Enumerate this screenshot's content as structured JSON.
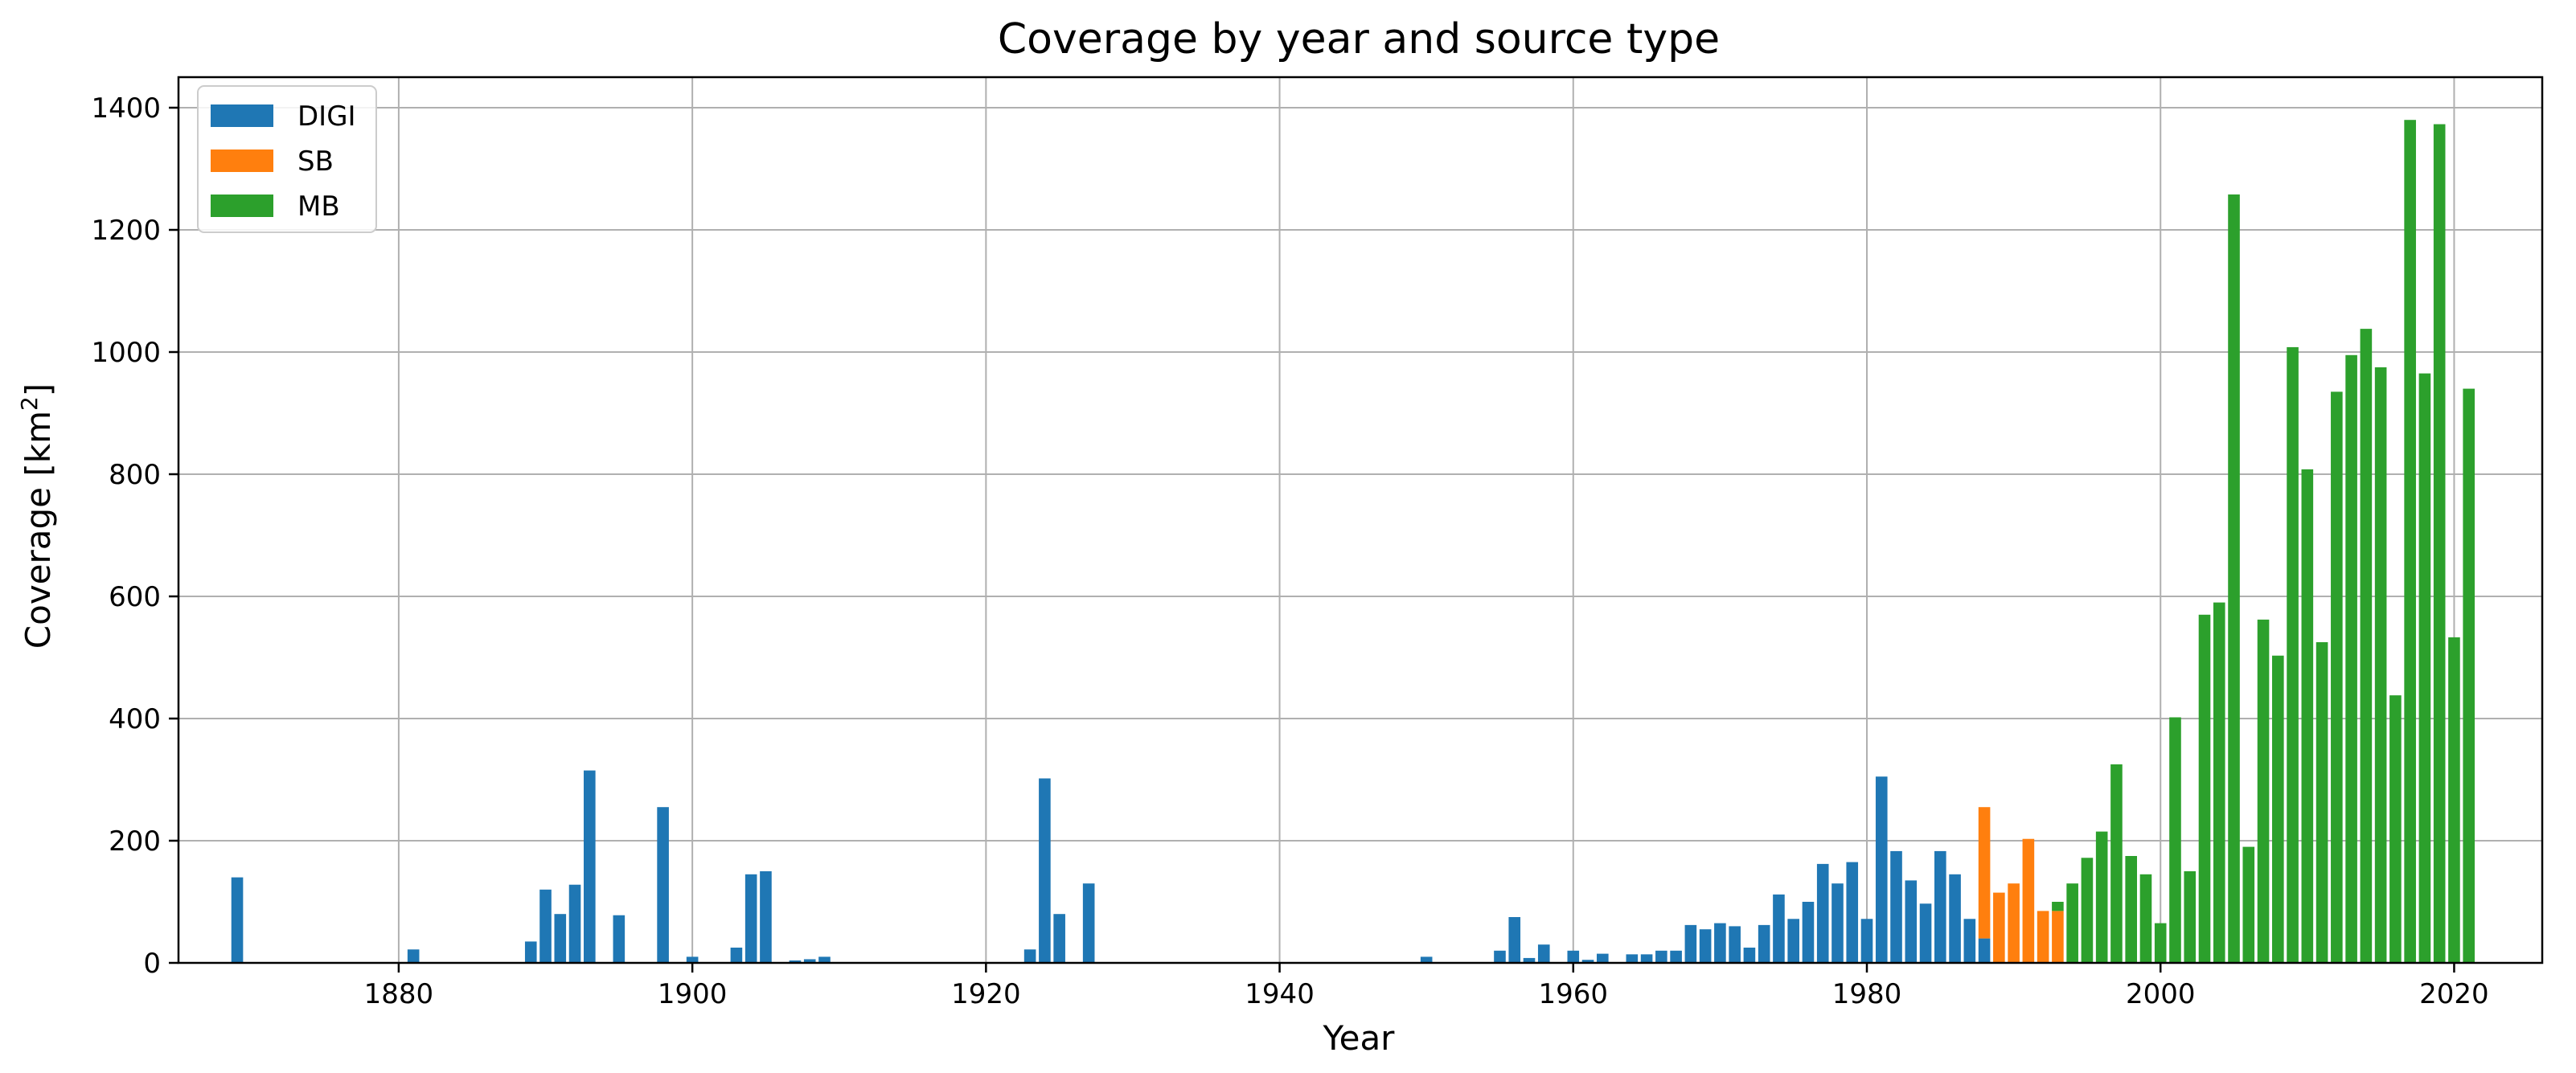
{
  "chart_data": {
    "type": "bar",
    "stacked": true,
    "title": "Coverage by year and source type",
    "xlabel": "Year",
    "ylabel": "Coverage [km",
    "ylabel_sup": "2",
    "ylabel_end": "]",
    "xlim": [
      1865,
      2026
    ],
    "ylim": [
      0,
      1450
    ],
    "xticks": [
      1880,
      1900,
      1920,
      1940,
      1960,
      1980,
      2000,
      2020
    ],
    "yticks": [
      0,
      200,
      400,
      600,
      800,
      1000,
      1200,
      1400
    ],
    "grid": true,
    "legend_position": "top-left",
    "series": [
      {
        "name": "DIGI",
        "color": "#1f77b4",
        "points": [
          [
            1869,
            140
          ],
          [
            1881,
            22
          ],
          [
            1889,
            35
          ],
          [
            1890,
            120
          ],
          [
            1891,
            80
          ],
          [
            1892,
            128
          ],
          [
            1893,
            315
          ],
          [
            1895,
            78
          ],
          [
            1898,
            255
          ],
          [
            1900,
            10
          ],
          [
            1903,
            25
          ],
          [
            1904,
            145
          ],
          [
            1905,
            150
          ],
          [
            1907,
            4
          ],
          [
            1908,
            6
          ],
          [
            1909,
            10
          ],
          [
            1923,
            22
          ],
          [
            1924,
            302
          ],
          [
            1925,
            80
          ],
          [
            1927,
            130
          ],
          [
            1950,
            10
          ],
          [
            1955,
            20
          ],
          [
            1956,
            75
          ],
          [
            1957,
            8
          ],
          [
            1958,
            30
          ],
          [
            1960,
            20
          ],
          [
            1961,
            5
          ],
          [
            1962,
            15
          ],
          [
            1964,
            14
          ],
          [
            1965,
            14
          ],
          [
            1966,
            20
          ],
          [
            1967,
            20
          ],
          [
            1968,
            62
          ],
          [
            1969,
            55
          ],
          [
            1970,
            65
          ],
          [
            1971,
            60
          ],
          [
            1972,
            25
          ],
          [
            1973,
            62
          ],
          [
            1974,
            112
          ],
          [
            1975,
            72
          ],
          [
            1976,
            100
          ],
          [
            1977,
            162
          ],
          [
            1978,
            130
          ],
          [
            1979,
            165
          ],
          [
            1980,
            72
          ],
          [
            1981,
            305
          ],
          [
            1982,
            183
          ],
          [
            1983,
            135
          ],
          [
            1984,
            97
          ],
          [
            1985,
            183
          ],
          [
            1986,
            145
          ],
          [
            1987,
            72
          ],
          [
            1988,
            40
          ]
        ]
      },
      {
        "name": "SB",
        "color": "#ff7f0e",
        "points": [
          [
            1988,
            215
          ],
          [
            1989,
            115
          ],
          [
            1990,
            130
          ],
          [
            1991,
            203
          ],
          [
            1992,
            85
          ],
          [
            1993,
            85
          ]
        ]
      },
      {
        "name": "MB",
        "color": "#2ca02c",
        "points": [
          [
            1993,
            15
          ],
          [
            1994,
            130
          ],
          [
            1995,
            172
          ],
          [
            1996,
            215
          ],
          [
            1997,
            325
          ],
          [
            1998,
            175
          ],
          [
            1999,
            145
          ],
          [
            2000,
            65
          ],
          [
            2001,
            402
          ],
          [
            2002,
            150
          ],
          [
            2003,
            570
          ],
          [
            2004,
            590
          ],
          [
            2005,
            1258
          ],
          [
            2006,
            190
          ],
          [
            2007,
            562
          ],
          [
            2008,
            503
          ],
          [
            2009,
            1008
          ],
          [
            2010,
            808
          ],
          [
            2011,
            525
          ],
          [
            2012,
            935
          ],
          [
            2013,
            995
          ],
          [
            2014,
            1038
          ],
          [
            2015,
            975
          ],
          [
            2016,
            438
          ],
          [
            2017,
            1380
          ],
          [
            2018,
            965
          ],
          [
            2019,
            1373
          ],
          [
            2020,
            533
          ],
          [
            2021,
            940
          ]
        ]
      }
    ]
  }
}
